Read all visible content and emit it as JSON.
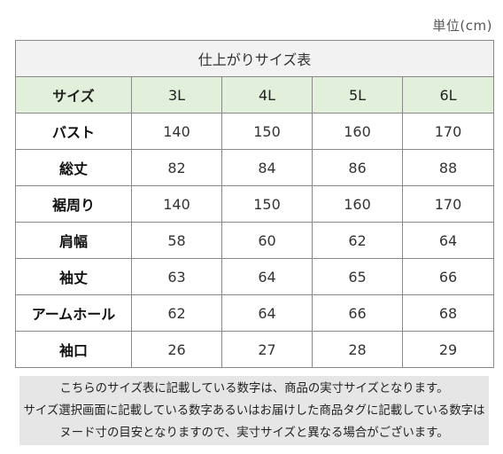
{
  "unit_label": "単位(cm)",
  "table": {
    "title": "仕上がりサイズ表",
    "header_label": "サイズ",
    "sizes": [
      "3L",
      "4L",
      "5L",
      "6L"
    ],
    "rows": [
      {
        "label": "バスト",
        "values": [
          "140",
          "150",
          "160",
          "170"
        ]
      },
      {
        "label": "総丈",
        "values": [
          "82",
          "84",
          "86",
          "88"
        ]
      },
      {
        "label": "裾周り",
        "values": [
          "140",
          "150",
          "160",
          "170"
        ]
      },
      {
        "label": "肩幅",
        "values": [
          "58",
          "60",
          "62",
          "64"
        ]
      },
      {
        "label": "袖丈",
        "values": [
          "63",
          "64",
          "65",
          "66"
        ]
      },
      {
        "label": "アームホール",
        "values": [
          "62",
          "64",
          "66",
          "68"
        ]
      },
      {
        "label": "袖口",
        "values": [
          "26",
          "27",
          "28",
          "29"
        ]
      }
    ]
  },
  "note": {
    "line1": "こちらのサイズ表に記載している数字は、商品の実寸サイズとなります。",
    "line2": "サイズ選択画面に記載している数字あるいはお届けした商品タグに記載している数字は",
    "line3": "ヌード寸の目安となりますので、実寸サイズと異なる場合がございます。"
  },
  "colors": {
    "header_bg": "#e2efda",
    "title_bg": "#f2f2f2",
    "note_bg": "#e6e6e6",
    "border": "#888888"
  }
}
